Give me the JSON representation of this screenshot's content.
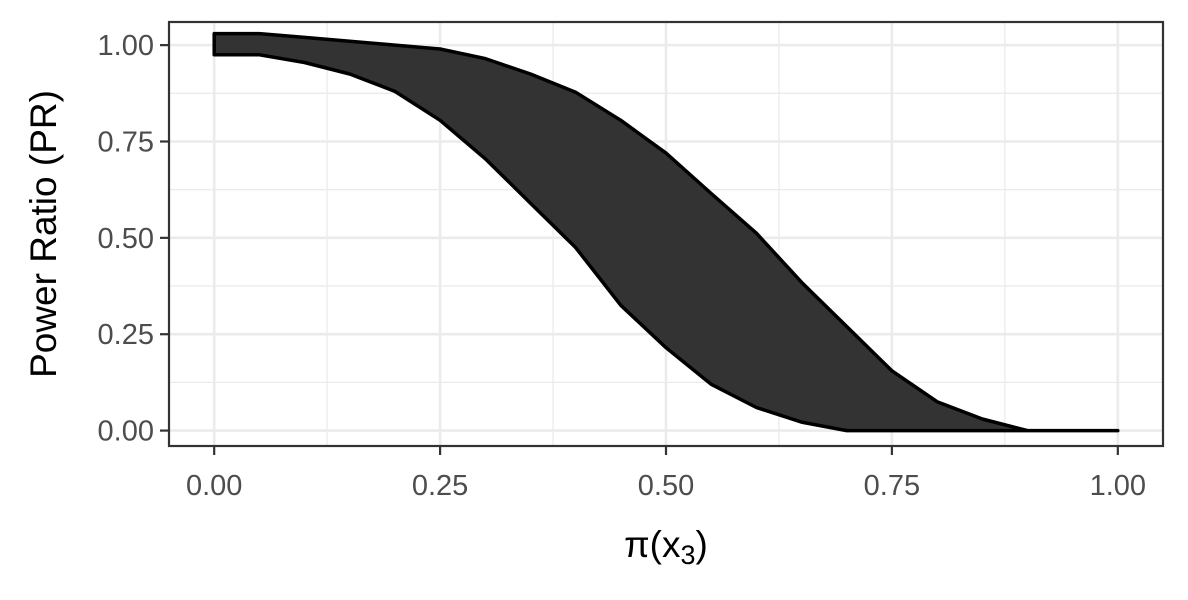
{
  "chart_data": {
    "type": "area",
    "subtype": "ribbon",
    "title": "",
    "xlabel_main": "π(x",
    "xlabel_sub": "3",
    "xlabel_close": ")",
    "ylabel": "Power Ratio (PR)",
    "xlim": [
      -0.05,
      1.05
    ],
    "ylim": [
      -0.04,
      1.06
    ],
    "x_ticks": [
      0,
      0.25,
      0.5,
      0.75,
      1
    ],
    "x_tick_labels": [
      "0.00",
      "0.25",
      "0.50",
      "0.75",
      "1.00"
    ],
    "y_ticks": [
      0,
      0.25,
      0.5,
      0.75,
      1
    ],
    "y_tick_labels": [
      "0.00",
      "0.25",
      "0.50",
      "0.75",
      "1.00"
    ],
    "grid": true,
    "fill_color": "#333333",
    "outline_color": "#000000",
    "x": [
      0,
      0.05,
      0.1,
      0.15,
      0.2,
      0.25,
      0.3,
      0.35,
      0.4,
      0.45,
      0.5,
      0.55,
      0.6,
      0.65,
      0.7,
      0.75,
      0.8,
      0.85,
      0.9,
      0.95,
      1.0
    ],
    "upper": [
      1.03,
      1.03,
      1.02,
      1.01,
      1.0,
      0.99,
      0.965,
      0.925,
      0.878,
      0.805,
      0.72,
      0.615,
      0.512,
      0.385,
      0.27,
      0.155,
      0.075,
      0.03,
      0.0,
      0.0,
      0.0
    ],
    "lower": [
      0.975,
      0.975,
      0.955,
      0.925,
      0.88,
      0.805,
      0.705,
      0.59,
      0.475,
      0.325,
      0.215,
      0.12,
      0.06,
      0.022,
      0.0,
      0.0,
      0.0,
      0.0,
      0.0,
      0.0,
      0.0
    ]
  }
}
